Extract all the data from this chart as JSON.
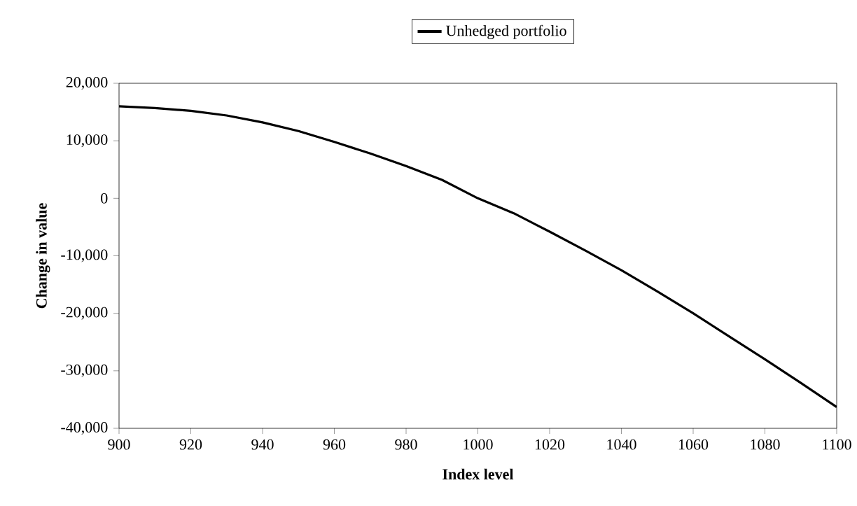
{
  "chart_data": {
    "type": "line",
    "xlabel": "Index level",
    "ylabel": "Change in value",
    "series": [
      {
        "name": "Unhedged portfolio",
        "color": "#000000",
        "x": [
          900,
          910,
          920,
          930,
          940,
          950,
          960,
          970,
          980,
          990,
          1000,
          1010,
          1020,
          1030,
          1040,
          1050,
          1060,
          1070,
          1080,
          1090,
          1100
        ],
        "values": [
          16000,
          15700,
          15200,
          14400,
          13200,
          11700,
          9800,
          7800,
          5600,
          3200,
          0,
          -2600,
          -5800,
          -9100,
          -12500,
          -16200,
          -20000,
          -24000,
          -28000,
          -32100,
          -36300
        ]
      }
    ],
    "xlim": [
      900,
      1100
    ],
    "xticks": [
      900,
      920,
      940,
      960,
      980,
      1000,
      1020,
      1040,
      1060,
      1080,
      1100
    ],
    "ylim": [
      -40000,
      20000
    ],
    "yticks": [
      {
        "value": -40000,
        "label": "-40,000"
      },
      {
        "value": -30000,
        "label": "-30,000"
      },
      {
        "value": -20000,
        "label": "-20,000"
      },
      {
        "value": -10000,
        "label": "-10,000"
      },
      {
        "value": 0,
        "label": "0"
      },
      {
        "value": 10000,
        "label": "10,000"
      },
      {
        "value": 20000,
        "label": "20,000"
      }
    ],
    "grid": false,
    "legend": "top",
    "marker": "none",
    "line_style": "solid"
  }
}
